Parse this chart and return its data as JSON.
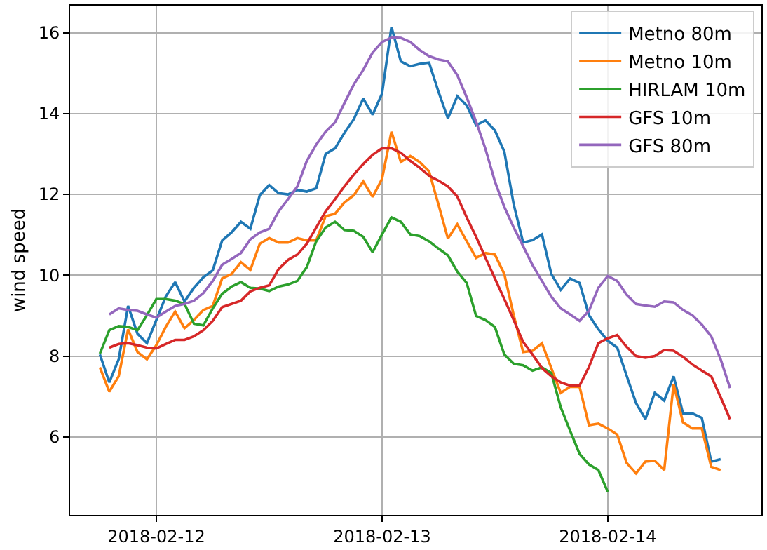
{
  "chart_data": {
    "type": "line",
    "ylabel": "wind speed",
    "x": [
      "2018-02-11T18:00",
      "2018-02-11T19:00",
      "2018-02-11T20:00",
      "2018-02-11T21:00",
      "2018-02-11T22:00",
      "2018-02-11T23:00",
      "2018-02-12T00:00",
      "2018-02-12T01:00",
      "2018-02-12T02:00",
      "2018-02-12T03:00",
      "2018-02-12T04:00",
      "2018-02-12T05:00",
      "2018-02-12T06:00",
      "2018-02-12T07:00",
      "2018-02-12T08:00",
      "2018-02-12T09:00",
      "2018-02-12T10:00",
      "2018-02-12T11:00",
      "2018-02-12T12:00",
      "2018-02-12T13:00",
      "2018-02-12T14:00",
      "2018-02-12T15:00",
      "2018-02-12T16:00",
      "2018-02-12T17:00",
      "2018-02-12T18:00",
      "2018-02-12T19:00",
      "2018-02-12T20:00",
      "2018-02-12T21:00",
      "2018-02-12T22:00",
      "2018-02-12T23:00",
      "2018-02-13T00:00",
      "2018-02-13T01:00",
      "2018-02-13T02:00",
      "2018-02-13T03:00",
      "2018-02-13T04:00",
      "2018-02-13T05:00",
      "2018-02-13T06:00",
      "2018-02-13T07:00",
      "2018-02-13T08:00",
      "2018-02-13T09:00",
      "2018-02-13T10:00",
      "2018-02-13T11:00",
      "2018-02-13T12:00",
      "2018-02-13T13:00",
      "2018-02-13T14:00",
      "2018-02-13T15:00",
      "2018-02-13T16:00",
      "2018-02-13T17:00",
      "2018-02-13T18:00",
      "2018-02-13T19:00",
      "2018-02-13T20:00",
      "2018-02-13T21:00",
      "2018-02-13T22:00",
      "2018-02-13T23:00",
      "2018-02-14T00:00",
      "2018-02-14T01:00",
      "2018-02-14T02:00",
      "2018-02-14T03:00",
      "2018-02-14T04:00",
      "2018-02-14T05:00",
      "2018-02-14T06:00",
      "2018-02-14T07:00",
      "2018-02-14T08:00",
      "2018-02-14T09:00",
      "2018-02-14T10:00",
      "2018-02-14T11:00",
      "2018-02-14T12:00",
      "2018-02-14T13:00"
    ],
    "series": [
      {
        "name": "Metno 80m",
        "color": "#1f77b4",
        "values": [
          8.04,
          7.35,
          7.92,
          9.24,
          8.55,
          8.32,
          8.89,
          9.47,
          9.83,
          9.35,
          9.69,
          9.95,
          10.12,
          10.86,
          11.06,
          11.32,
          11.15,
          11.98,
          12.23,
          12.03,
          12.0,
          12.11,
          12.07,
          12.15,
          13.0,
          13.14,
          13.52,
          13.86,
          14.37,
          13.97,
          14.49,
          16.14,
          15.29,
          15.17,
          15.23,
          15.26,
          14.54,
          13.88,
          14.43,
          14.2,
          13.71,
          13.83,
          13.58,
          13.06,
          11.75,
          10.81,
          10.87,
          11.01,
          10.03,
          9.64,
          9.92,
          9.81,
          9.01,
          8.66,
          8.38,
          8.21,
          7.52,
          6.84,
          6.44,
          7.09,
          6.9,
          7.5,
          6.58,
          6.58,
          6.47,
          5.39,
          5.45,
          null
        ]
      },
      {
        "name": "Metno 10m",
        "color": "#ff7f0e",
        "values": [
          7.72,
          7.12,
          7.5,
          8.66,
          8.1,
          7.92,
          8.27,
          8.72,
          9.1,
          8.69,
          8.89,
          9.14,
          9.24,
          9.92,
          10.03,
          10.32,
          10.13,
          10.78,
          10.92,
          10.81,
          10.81,
          10.92,
          10.86,
          10.86,
          11.46,
          11.52,
          11.8,
          11.98,
          12.32,
          11.94,
          12.38,
          13.55,
          12.8,
          12.95,
          12.8,
          12.57,
          11.75,
          10.91,
          11.26,
          10.84,
          10.43,
          10.55,
          10.51,
          10.03,
          9.01,
          8.1,
          8.13,
          8.32,
          7.7,
          7.09,
          7.24,
          7.24,
          6.29,
          6.33,
          6.21,
          6.06,
          5.36,
          5.1,
          5.39,
          5.41,
          5.18,
          7.3,
          6.36,
          6.21,
          6.21,
          5.26,
          5.18,
          null
        ]
      },
      {
        "name": "HIRLAM 10m",
        "color": "#2ca02c",
        "values": [
          8.06,
          8.64,
          8.74,
          8.72,
          8.64,
          9.01,
          9.41,
          9.41,
          9.37,
          9.29,
          8.8,
          8.76,
          9.18,
          9.54,
          9.72,
          9.83,
          9.69,
          9.67,
          9.61,
          9.72,
          9.77,
          9.86,
          10.2,
          10.84,
          11.18,
          11.32,
          11.12,
          11.1,
          10.95,
          10.57,
          11.01,
          11.43,
          11.32,
          11.01,
          10.97,
          10.84,
          10.66,
          10.49,
          10.09,
          9.81,
          8.99,
          8.89,
          8.72,
          8.04,
          7.81,
          7.77,
          7.64,
          7.72,
          7.58,
          6.73,
          6.15,
          5.58,
          5.32,
          5.18,
          4.64,
          null,
          null,
          null,
          null,
          null,
          null,
          null,
          null,
          null,
          null,
          null,
          null,
          null
        ]
      },
      {
        "name": "GFS 10m",
        "color": "#d62728",
        "values": [
          null,
          8.21,
          8.3,
          8.32,
          8.27,
          8.21,
          8.19,
          8.3,
          8.4,
          8.4,
          8.49,
          8.64,
          8.87,
          9.21,
          9.29,
          9.37,
          9.6,
          9.69,
          9.75,
          10.15,
          10.38,
          10.51,
          10.78,
          11.18,
          11.58,
          11.88,
          12.2,
          12.49,
          12.75,
          12.98,
          13.14,
          13.14,
          13.03,
          12.83,
          12.66,
          12.46,
          12.34,
          12.2,
          11.95,
          11.43,
          10.95,
          10.43,
          9.92,
          9.41,
          8.89,
          8.35,
          8.04,
          7.7,
          7.5,
          7.35,
          7.27,
          7.27,
          7.73,
          8.32,
          8.44,
          8.52,
          8.23,
          8.0,
          7.96,
          8.0,
          8.15,
          8.13,
          7.98,
          7.79,
          7.64,
          7.5,
          6.98,
          6.44
        ]
      },
      {
        "name": "GFS 80m",
        "color": "#9467bd",
        "values": [
          null,
          9.03,
          9.18,
          9.14,
          9.12,
          9.03,
          8.95,
          9.1,
          9.24,
          9.29,
          9.37,
          9.56,
          9.86,
          10.26,
          10.4,
          10.55,
          10.89,
          11.06,
          11.15,
          11.58,
          11.88,
          12.2,
          12.83,
          13.23,
          13.55,
          13.78,
          14.26,
          14.72,
          15.08,
          15.51,
          15.77,
          15.88,
          15.87,
          15.77,
          15.57,
          15.42,
          15.34,
          15.29,
          14.95,
          14.4,
          13.8,
          13.12,
          12.32,
          11.69,
          11.18,
          10.72,
          10.25,
          9.86,
          9.47,
          9.18,
          9.03,
          8.87,
          9.12,
          9.69,
          9.98,
          9.86,
          9.52,
          9.29,
          9.25,
          9.22,
          9.35,
          9.33,
          9.14,
          9.01,
          8.78,
          8.49,
          7.92,
          7.21
        ]
      }
    ],
    "xlim": [
      "2018-02-11T14:50",
      "2018-02-14T16:20"
    ],
    "xticks": [
      "2018-02-12",
      "2018-02-13",
      "2018-02-14"
    ],
    "ylim": [
      4.07,
      16.67
    ],
    "yticks": [
      6,
      8,
      10,
      12,
      14,
      16
    ],
    "grid": true,
    "legend": "top right",
    "marker": "none",
    "line_style": "solid"
  }
}
